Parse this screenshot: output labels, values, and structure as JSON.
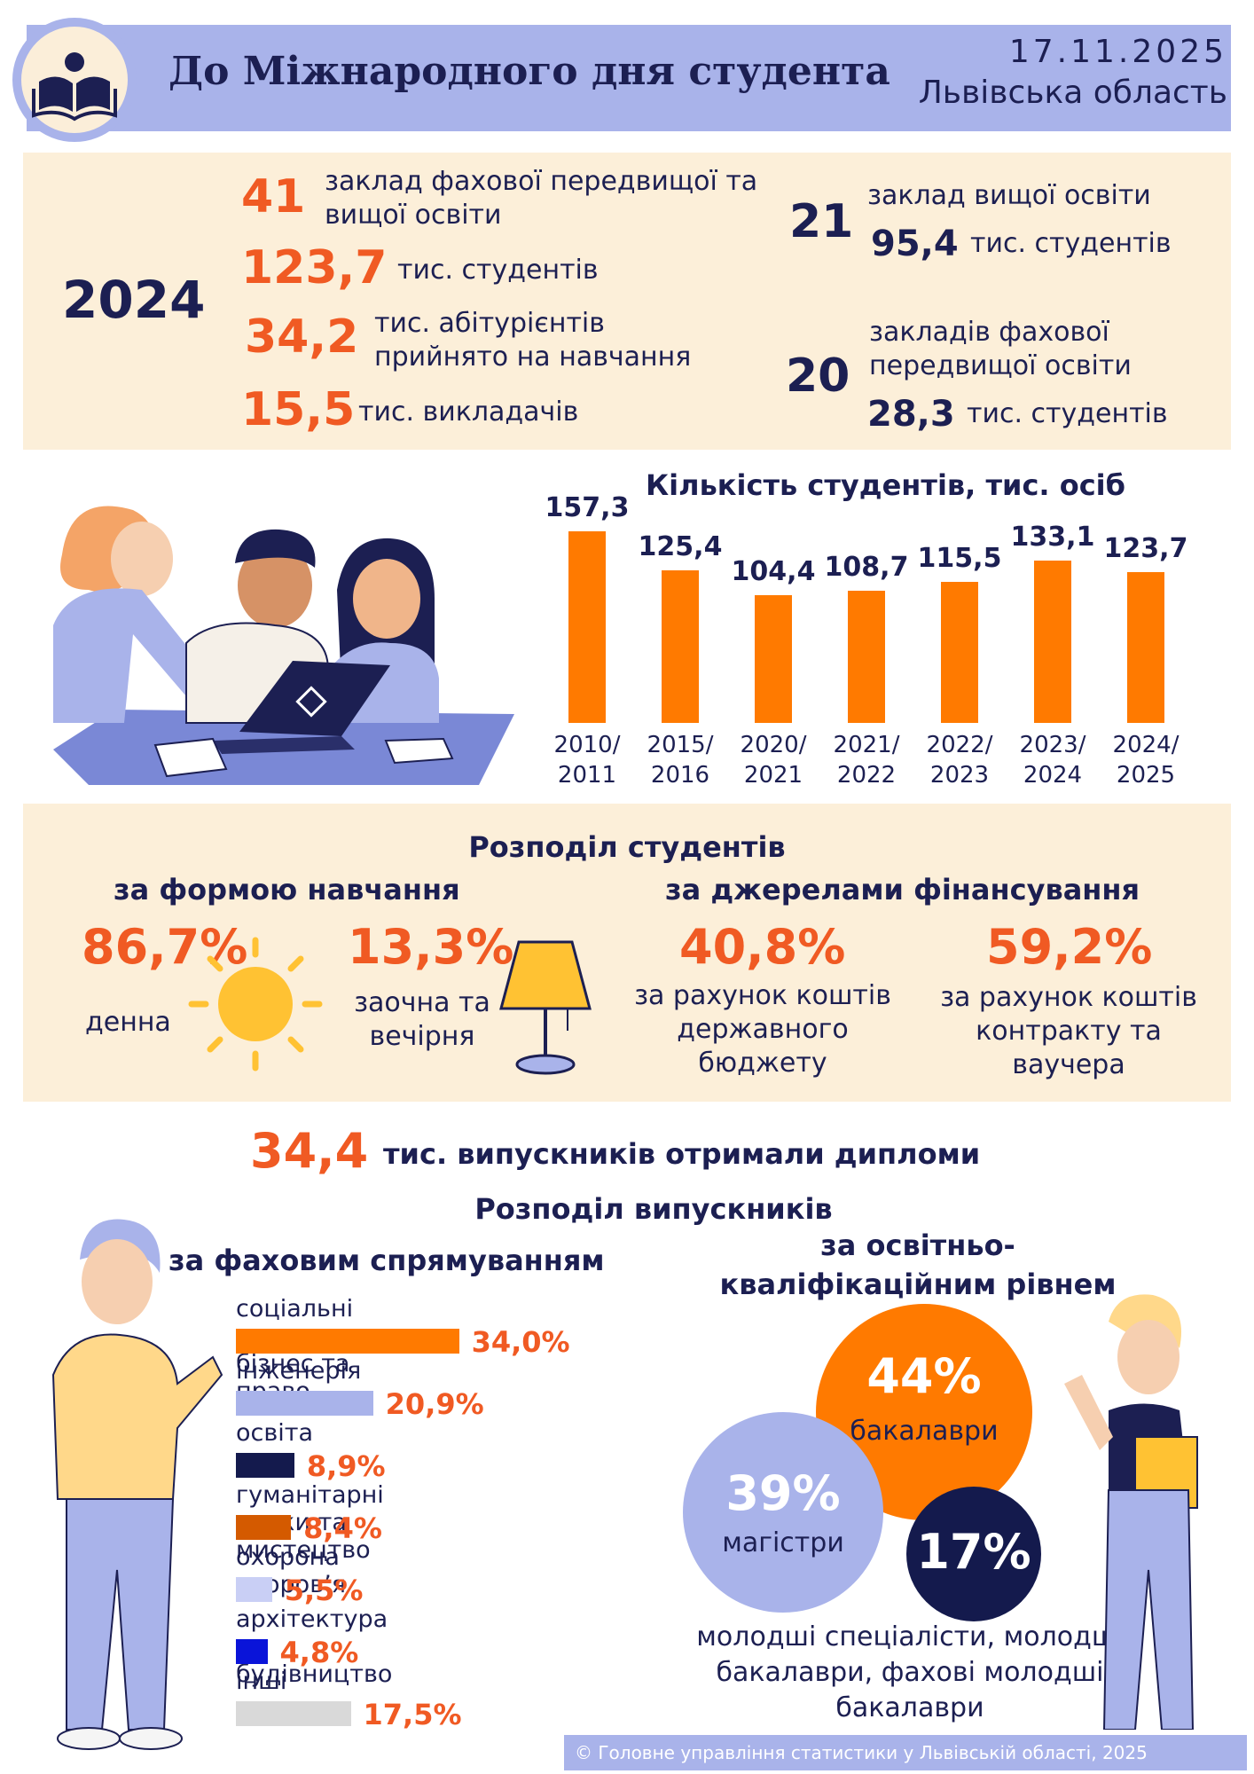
{
  "header": {
    "title": "До Міжнародного дня студента",
    "date": "17.11.2025",
    "region": "Львівська область"
  },
  "summary": {
    "year": "2024",
    "left": [
      {
        "num": "41",
        "text": "заклад фахової передвищої та вищої освіти"
      },
      {
        "num": "123,7",
        "text": "тис. студентів"
      },
      {
        "num": "34,2",
        "text": "тис. абітурієнтів прийнято на навчання"
      },
      {
        "num": "15,5",
        "text": "тис. викладачів"
      }
    ],
    "right": [
      {
        "num": "21",
        "text": "заклад вищої освіти",
        "sub_num": "95,4",
        "sub_text": "тис. студентів"
      },
      {
        "num": "20",
        "text": "закладів фахової передвищої освіти",
        "sub_num": "28,3",
        "sub_text": "тис. студентів"
      }
    ]
  },
  "chart_data": {
    "type": "bar",
    "title": "Кількість студентів, тис. осіб",
    "categories": [
      "2010/\n2011",
      "2015/\n2016",
      "2020/\n2021",
      "2021/\n2022",
      "2022/\n2023",
      "2023/\n2024",
      "2024/\n2025"
    ],
    "values": [
      157.3,
      125.4,
      104.4,
      108.7,
      115.5,
      133.1,
      123.7
    ],
    "value_labels": [
      "157,3",
      "125,4",
      "104,4",
      "108,7",
      "115,5",
      "133,1",
      "123,7"
    ],
    "ylim": [
      0,
      160
    ],
    "grid": false,
    "colors": {
      "bar": "#ff7a00"
    }
  },
  "distribution": {
    "title": "Розподіл студентів",
    "by_form": {
      "title": "за формою навчання",
      "items": [
        {
          "pct": "86,7%",
          "label": "денна"
        },
        {
          "pct": "13,3%",
          "label": "заочна та вечірня"
        }
      ]
    },
    "by_funding": {
      "title": "за джерелами фінансування",
      "items": [
        {
          "pct": "40,8%",
          "label": "за рахунок коштів державного бюджету"
        },
        {
          "pct": "59,2%",
          "label": "за рахунок коштів контракту та ваучера"
        }
      ]
    }
  },
  "graduates": {
    "num": "34,4",
    "text": "тис. випускників отримали дипломи",
    "dist_title": "Розподіл випускників",
    "by_field": {
      "title": "за фаховим спрямуванням",
      "items": [
        {
          "label": "соціальні науки, бізнес та право",
          "value": 34.0,
          "value_label": "34,0%",
          "color": "#ff7a00"
        },
        {
          "label": "інженерія",
          "value": 20.9,
          "value_label": "20,9%",
          "color": "#a9b3ea"
        },
        {
          "label": "освіта",
          "value": 8.9,
          "value_label": "8,9%",
          "color": "#141a4d"
        },
        {
          "label": "гуманітарні науки та мистецтво",
          "value": 8.4,
          "value_label": "8,4%",
          "color": "#d45a00"
        },
        {
          "label": "охорона здоров’я",
          "value": 5.5,
          "value_label": "5,5%",
          "color": "#c9cff5"
        },
        {
          "label": "архітектура та будівництво",
          "value": 4.8,
          "value_label": "4,8%",
          "color": "#0a14d9"
        },
        {
          "label": "інші",
          "value": 17.5,
          "value_label": "17,5%",
          "color": "#d9d9d9"
        }
      ]
    },
    "by_level": {
      "title": "за освітньо-кваліфікаційним рівнем",
      "items": [
        {
          "pct": "44%",
          "label": "бакалаври",
          "color": "#ff7a00"
        },
        {
          "pct": "39%",
          "label": "магістри",
          "color": "#a9b3ea"
        },
        {
          "pct": "17%",
          "label": "молодші спеціалісти, молодші бакалаври, фахові молодші бакалаври",
          "color": "#141a4d"
        }
      ]
    }
  },
  "footer": {
    "text": "© Головне управління статистики у Львівській області, 2025"
  }
}
